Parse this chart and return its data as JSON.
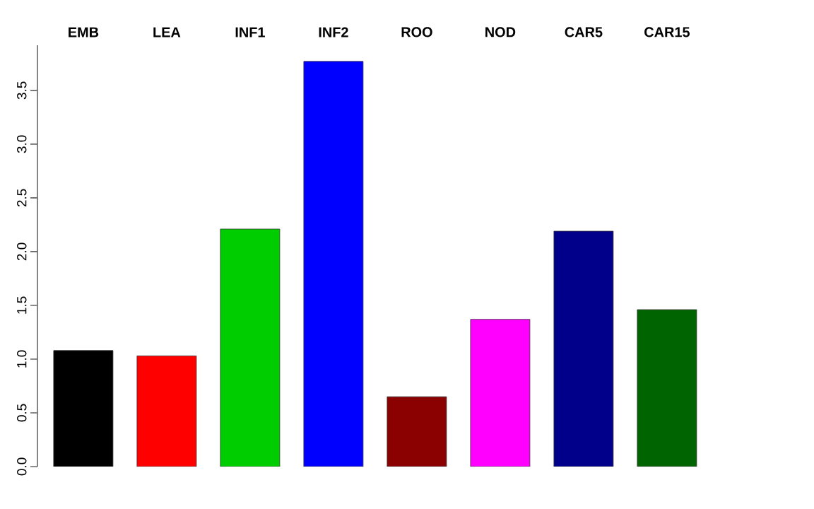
{
  "chart_data": {
    "type": "bar",
    "categories": [
      "EMB",
      "LEA",
      "INF1",
      "INF2",
      "ROO",
      "NOD",
      "CAR5",
      "CAR15"
    ],
    "values": [
      1.08,
      1.03,
      2.21,
      3.77,
      0.65,
      1.37,
      2.19,
      1.46
    ],
    "colors": [
      "#000000",
      "#ff0000",
      "#00cd00",
      "#0000ff",
      "#8b0000",
      "#ff00ff",
      "#00008b",
      "#006400"
    ],
    "ylim": [
      0,
      3.92
    ],
    "yticks": [
      {
        "value": 0,
        "label": "0.0"
      },
      {
        "value": 0.5,
        "label": "0.5"
      },
      {
        "value": 1,
        "label": "1.0"
      },
      {
        "value": 1.5,
        "label": "1.5"
      },
      {
        "value": 2,
        "label": "2.0"
      },
      {
        "value": 2.5,
        "label": "2.5"
      },
      {
        "value": 3,
        "label": "3.0"
      },
      {
        "value": 3.5,
        "label": "3.5"
      }
    ]
  }
}
